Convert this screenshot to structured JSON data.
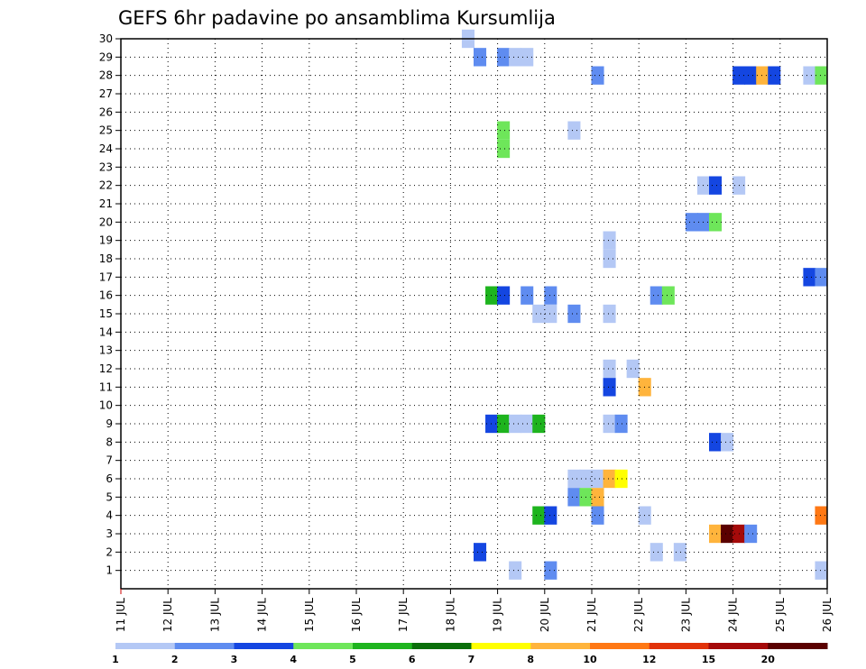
{
  "chart_data": {
    "type": "heatmap",
    "title": "GEFS 6hr padavine po ansamblima Kursumlija",
    "xlabel": "",
    "ylabel": "",
    "x_ticks": [
      "11 JUL",
      "12 JUL",
      "13 JUL",
      "14 JUL",
      "15 JUL",
      "16 JUL",
      "17 JUL",
      "18 JUL",
      "19 JUL",
      "20 JUL",
      "21 JUL",
      "22 JUL",
      "23 JUL",
      "24 JUL",
      "25 JUL",
      "26 JUL"
    ],
    "xlim": [
      0,
      60
    ],
    "x_unit": "6-hour steps from 11 JUL 00Z",
    "y_ticks": [
      1,
      2,
      3,
      4,
      5,
      6,
      7,
      8,
      9,
      10,
      11,
      12,
      13,
      14,
      15,
      16,
      17,
      18,
      19,
      20,
      21,
      22,
      23,
      24,
      25,
      26,
      27,
      28,
      29,
      30
    ],
    "ylim": [
      0,
      30
    ],
    "grid": true,
    "colorbar": {
      "labels": [
        "1",
        "2",
        "3",
        "4",
        "5",
        "6",
        "7",
        "8",
        "10",
        "12",
        "15",
        "20"
      ],
      "colors": [
        "#b4c8f5",
        "#5f8cf0",
        "#1446e1",
        "#6ee65a",
        "#1eb41e",
        "#0a6e0a",
        "#ffff00",
        "#ffb43c",
        "#ff7814",
        "#e1320a",
        "#a50a0a",
        "#5a0000"
      ]
    },
    "cells": [
      {
        "m": 30,
        "s": [
          [
            30,
            1
          ]
        ]
      },
      {
        "m": 29,
        "s": [
          [
            31,
            2
          ],
          [
            33,
            2
          ],
          [
            34,
            1
          ],
          [
            35,
            1
          ]
        ]
      },
      {
        "m": 28,
        "s": [
          [
            41,
            2
          ],
          [
            53,
            3
          ],
          [
            54,
            3
          ],
          [
            55,
            8
          ],
          [
            56,
            3
          ],
          [
            59,
            1
          ],
          [
            60,
            4
          ]
        ]
      },
      {
        "m": 25,
        "s": [
          [
            33,
            4
          ],
          [
            39,
            1
          ]
        ]
      },
      {
        "m": 24,
        "s": [
          [
            33,
            4
          ]
        ]
      },
      {
        "m": 22,
        "s": [
          [
            50,
            1
          ],
          [
            51,
            3
          ],
          [
            53,
            1
          ]
        ]
      },
      {
        "m": 20,
        "s": [
          [
            49,
            2
          ],
          [
            50,
            2
          ],
          [
            51,
            4
          ]
        ]
      },
      {
        "m": 19,
        "s": [
          [
            42,
            1
          ]
        ]
      },
      {
        "m": 18,
        "s": [
          [
            42,
            1
          ]
        ]
      },
      {
        "m": 17,
        "s": [
          [
            59,
            3
          ],
          [
            60,
            2
          ]
        ]
      },
      {
        "m": 16,
        "s": [
          [
            32,
            5
          ],
          [
            33,
            3
          ],
          [
            35,
            2
          ],
          [
            37,
            2
          ],
          [
            46,
            2
          ],
          [
            47,
            4
          ]
        ]
      },
      {
        "m": 15,
        "s": [
          [
            36,
            1
          ],
          [
            37,
            1
          ],
          [
            39,
            2
          ],
          [
            42,
            1
          ]
        ]
      },
      {
        "m": 12,
        "s": [
          [
            42,
            1
          ],
          [
            44,
            1
          ]
        ]
      },
      {
        "m": 11,
        "s": [
          [
            42,
            3
          ],
          [
            45,
            8
          ]
        ]
      },
      {
        "m": 9,
        "s": [
          [
            32,
            3
          ],
          [
            33,
            5
          ],
          [
            34,
            1
          ],
          [
            35,
            1
          ],
          [
            36,
            5
          ],
          [
            42,
            1
          ],
          [
            43,
            2
          ]
        ]
      },
      {
        "m": 8,
        "s": [
          [
            51,
            3
          ],
          [
            52,
            1
          ]
        ]
      },
      {
        "m": 6,
        "s": [
          [
            39,
            1
          ],
          [
            40,
            1
          ],
          [
            41,
            1
          ],
          [
            42,
            8
          ],
          [
            43,
            7
          ]
        ]
      },
      {
        "m": 5,
        "s": [
          [
            39,
            2
          ],
          [
            40,
            4
          ],
          [
            41,
            8
          ]
        ]
      },
      {
        "m": 4,
        "s": [
          [
            36,
            5
          ],
          [
            37,
            3
          ],
          [
            41,
            2
          ],
          [
            45,
            1
          ],
          [
            60,
            9
          ]
        ]
      },
      {
        "m": 3,
        "s": [
          [
            51,
            8
          ],
          [
            52,
            12
          ],
          [
            53,
            11
          ],
          [
            54,
            2
          ]
        ]
      },
      {
        "m": 2,
        "s": [
          [
            31,
            3
          ],
          [
            46,
            1
          ],
          [
            48,
            1
          ]
        ]
      },
      {
        "m": 1,
        "s": [
          [
            34,
            1
          ],
          [
            37,
            2
          ],
          [
            60,
            1
          ]
        ]
      }
    ]
  }
}
